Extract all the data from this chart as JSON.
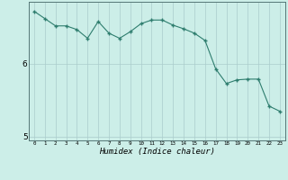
{
  "x": [
    0,
    1,
    2,
    3,
    4,
    5,
    6,
    7,
    8,
    9,
    10,
    11,
    12,
    13,
    14,
    15,
    16,
    17,
    18,
    19,
    20,
    21,
    22,
    23
  ],
  "y": [
    6.72,
    6.62,
    6.52,
    6.52,
    6.47,
    6.35,
    6.58,
    6.42,
    6.35,
    6.44,
    6.55,
    6.6,
    6.6,
    6.53,
    6.48,
    6.42,
    6.32,
    5.93,
    5.73,
    5.78,
    5.79,
    5.79,
    5.42,
    5.35
  ],
  "line_color": "#2e7d6e",
  "marker": "+",
  "marker_size": 3.5,
  "bg_color": "#cceee8",
  "grid_color": "#aacccc",
  "xlabel": "Humidex (Indice chaleur)",
  "xlabel_fontsize": 6.5,
  "yticks": [
    5,
    6
  ],
  "xtick_labels": [
    "0",
    "1",
    "2",
    "3",
    "4",
    "5",
    "6",
    "7",
    "8",
    "9",
    "10",
    "11",
    "12",
    "13",
    "14",
    "15",
    "16",
    "17",
    "18",
    "19",
    "20",
    "21",
    "22",
    "23"
  ],
  "ylim": [
    4.95,
    6.85
  ],
  "xlim": [
    -0.5,
    23.5
  ]
}
